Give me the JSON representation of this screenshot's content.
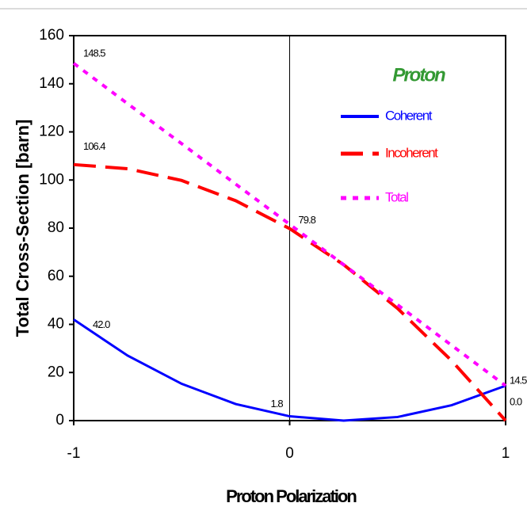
{
  "chart_data": {
    "type": "line",
    "xlabel": "Proton Polarization",
    "ylabel": "Total Cross-Section [barn]",
    "legend_title": "Proton",
    "legend": "upper right",
    "x": [
      -1,
      -0.75,
      -0.5,
      -0.25,
      0,
      0.25,
      0.5,
      0.75,
      1
    ],
    "series": [
      {
        "name": "Coherent",
        "color": "#0000ff",
        "style": "solid",
        "values": [
          42.0,
          27.0,
          15.3,
          6.9,
          1.8,
          0.0,
          1.5,
          6.4,
          14.5
        ],
        "value_labels": [
          "42.0",
          null,
          null,
          null,
          "1.8",
          null,
          null,
          null,
          "14.5"
        ]
      },
      {
        "name": "Incoherent",
        "color": "#ff0000",
        "style": "dashed",
        "values": [
          106.4,
          104.7,
          99.8,
          91.4,
          79.8,
          64.8,
          46.6,
          24.9,
          0.0
        ],
        "value_labels": [
          "106.4",
          null,
          null,
          null,
          "79.8",
          null,
          null,
          null,
          "0.0"
        ]
      },
      {
        "name": "Total",
        "color": "#ff00ff",
        "style": "dotted",
        "values": [
          148.5,
          131.7,
          115.1,
          98.3,
          81.6,
          64.8,
          48.1,
          31.3,
          14.5
        ],
        "value_labels": [
          "148.5",
          null,
          null,
          null,
          null,
          null,
          null,
          null,
          null
        ]
      }
    ],
    "xlim": [
      -1,
      1
    ],
    "xticks": [
      -1,
      0,
      1
    ],
    "ylim": [
      0,
      160
    ],
    "yticks": [
      0,
      20,
      40,
      60,
      80,
      100,
      120,
      140,
      160
    ]
  }
}
